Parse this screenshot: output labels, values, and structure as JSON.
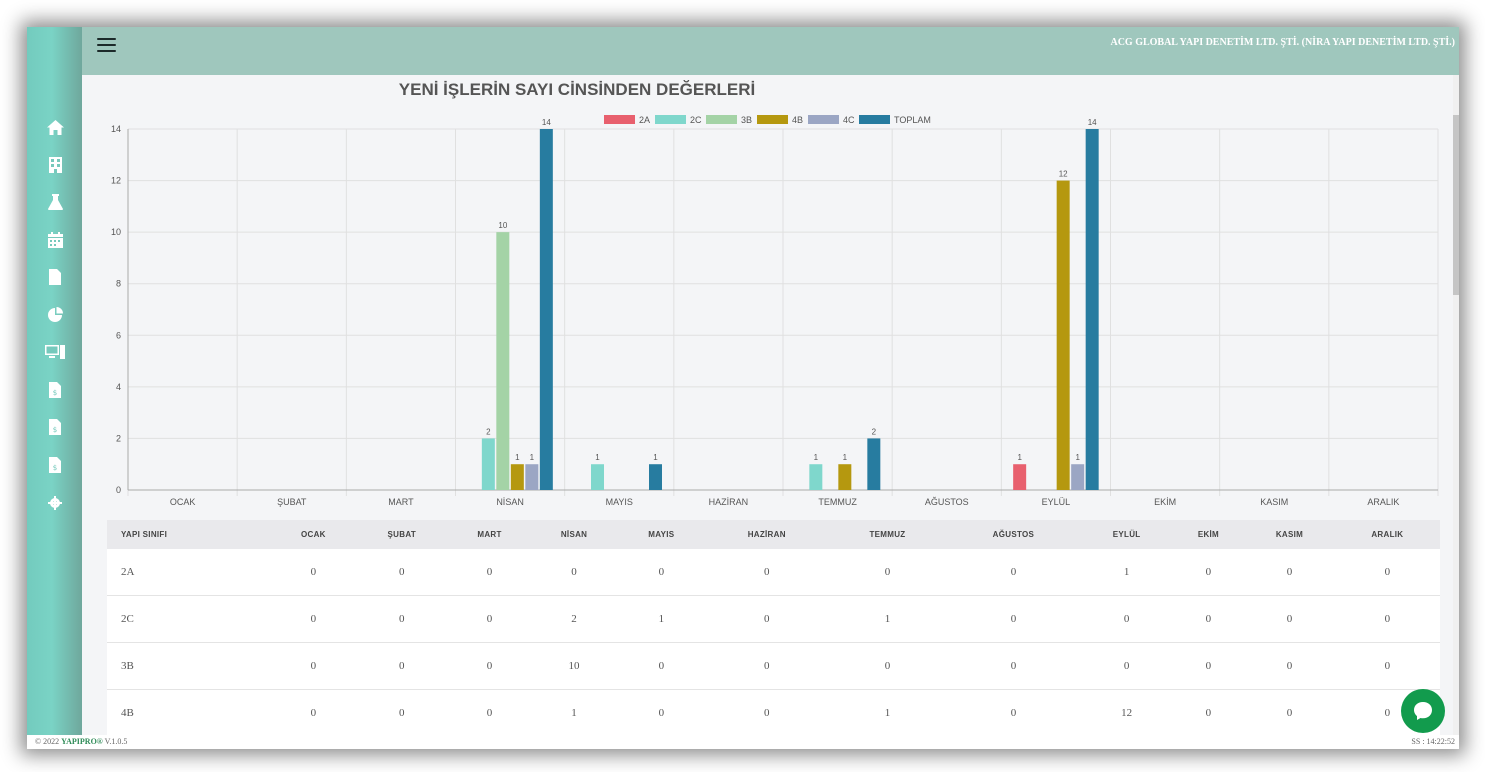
{
  "header": {
    "company": "ACG GLOBAL YAPI DENETİM LTD. ŞTİ. (NİRA YAPI DENETİM LTD. ŞTİ.)"
  },
  "sidebar": {
    "icons": [
      "home-icon",
      "building-icon",
      "flask-icon",
      "calendar-icon",
      "file-icon",
      "pie-chart-icon",
      "computers-icon",
      "file-dollar-icon",
      "file-dollar-icon",
      "file-dollar-icon",
      "gear-icon"
    ]
  },
  "colors": {
    "2A": "#e8606e",
    "2C": "#7fd7cc",
    "3B": "#a4d3a6",
    "4B": "#b5980f",
    "4C": "#9ba6c4",
    "TOPLAM": "#277ca0"
  },
  "chart_data": {
    "type": "bar",
    "title": "YENİ İŞLERİN SAYI CİNSİNDEN DEĞERLERİ",
    "categories": [
      "OCAK",
      "ŞUBAT",
      "MART",
      "NİSAN",
      "MAYIS",
      "HAZİRAN",
      "TEMMUZ",
      "AĞUSTOS",
      "EYLÜL",
      "EKİM",
      "KASIM",
      "ARALIK"
    ],
    "series": [
      {
        "name": "2A",
        "values": [
          0,
          0,
          0,
          0,
          0,
          0,
          0,
          0,
          1,
          0,
          0,
          0
        ]
      },
      {
        "name": "2C",
        "values": [
          0,
          0,
          0,
          2,
          1,
          0,
          1,
          0,
          0,
          0,
          0,
          0
        ]
      },
      {
        "name": "3B",
        "values": [
          0,
          0,
          0,
          10,
          0,
          0,
          0,
          0,
          0,
          0,
          0,
          0
        ]
      },
      {
        "name": "4B",
        "values": [
          0,
          0,
          0,
          1,
          0,
          0,
          1,
          0,
          12,
          0,
          0,
          0
        ]
      },
      {
        "name": "4C",
        "values": [
          0,
          0,
          0,
          1,
          0,
          0,
          0,
          0,
          1,
          0,
          0,
          0
        ]
      },
      {
        "name": "TOPLAM",
        "values": [
          0,
          0,
          0,
          14,
          1,
          0,
          2,
          0,
          14,
          0,
          0,
          0
        ]
      }
    ],
    "ylim": [
      0,
      14
    ],
    "yticks": [
      0,
      2,
      4,
      6,
      8,
      10,
      12,
      14
    ],
    "legend": "top-center",
    "grid": true
  },
  "table": {
    "headers": [
      "YAPI SINIFI",
      "OCAK",
      "ŞUBAT",
      "MART",
      "NİSAN",
      "MAYIS",
      "HAZİRAN",
      "TEMMUZ",
      "AĞUSTOS",
      "EYLÜL",
      "EKİM",
      "KASIM",
      "ARALIK"
    ],
    "rows": [
      [
        "2A",
        "0",
        "0",
        "0",
        "0",
        "0",
        "0",
        "0",
        "0",
        "1",
        "0",
        "0",
        "0"
      ],
      [
        "2C",
        "0",
        "0",
        "0",
        "2",
        "1",
        "0",
        "1",
        "0",
        "0",
        "0",
        "0",
        "0"
      ],
      [
        "3B",
        "0",
        "0",
        "0",
        "10",
        "0",
        "0",
        "0",
        "0",
        "0",
        "0",
        "0",
        "0"
      ],
      [
        "4B",
        "0",
        "0",
        "0",
        "1",
        "0",
        "0",
        "1",
        "0",
        "12",
        "0",
        "0",
        "0"
      ]
    ]
  },
  "footer": {
    "copyright": "© 2022",
    "brand": "YAPIPRO®",
    "version": "V.1.0.5",
    "time": "SS : 14:22:52"
  }
}
